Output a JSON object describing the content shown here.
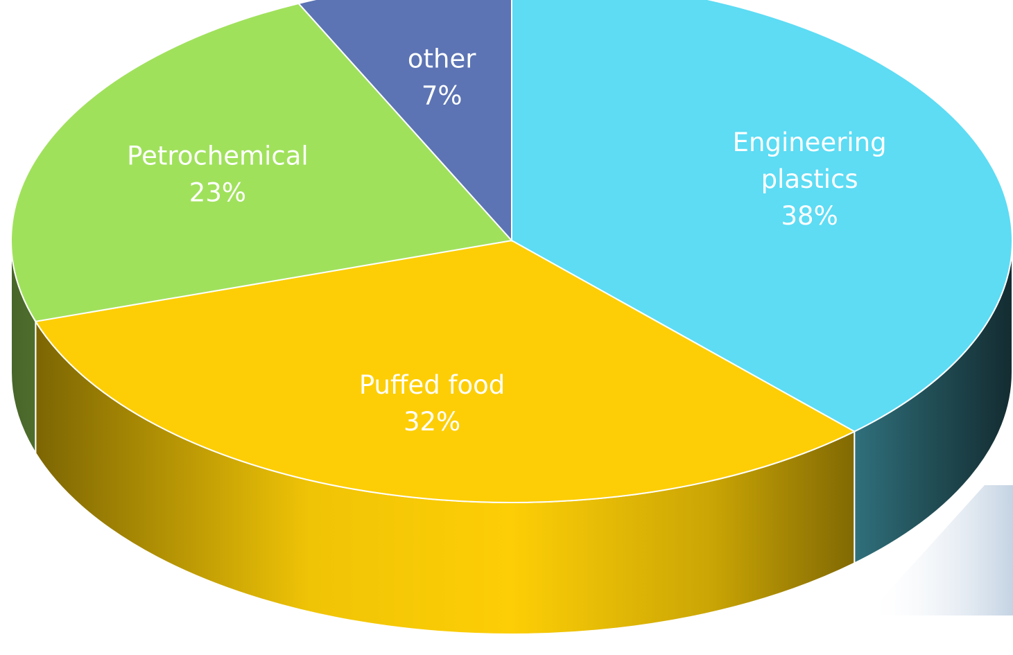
{
  "chart_data": {
    "type": "pie",
    "style": "3d",
    "title": "",
    "slices": [
      {
        "label": "Engineering\nplastics",
        "value": 38,
        "display": "38%",
        "color": "#5DDCF4"
      },
      {
        "label": "Puffed food",
        "value": 32,
        "display": "32%",
        "color": "#FDCE06"
      },
      {
        "label": "Petrochemical",
        "value": 23,
        "display": "23%",
        "color": "#A0E15C"
      },
      {
        "label": "other",
        "value": 7,
        "display": "7%",
        "color": "#5C74B4"
      }
    ],
    "legend": "none",
    "data_labels": "inside"
  }
}
